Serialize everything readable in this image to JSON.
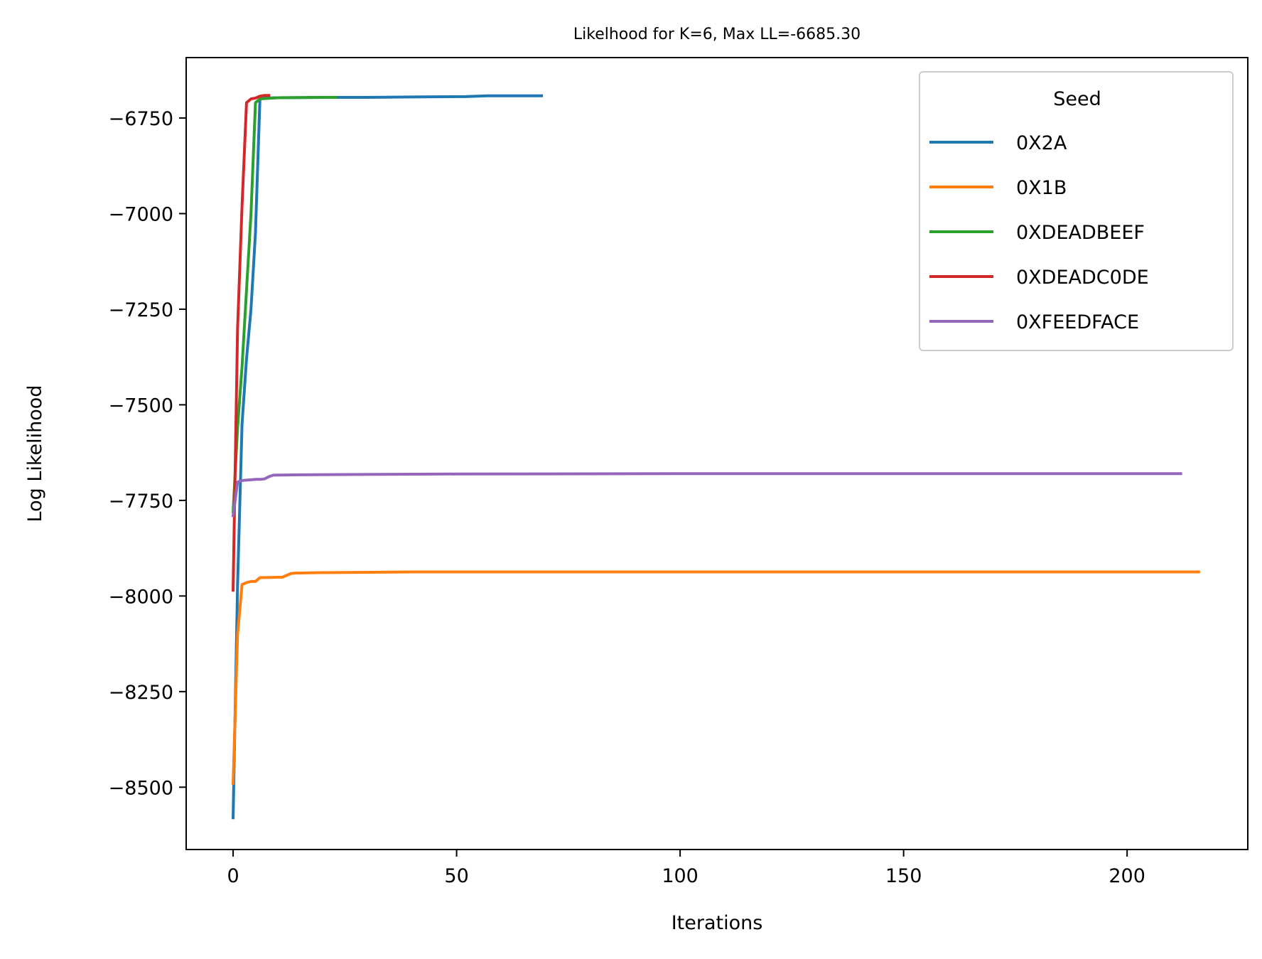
{
  "chart_data": {
    "type": "line",
    "title": "Likelhood for K=6,  Max LL=-6685.30",
    "xlabel": "Iterations",
    "ylabel": "Log Likelihood",
    "xlim": [
      -10.5,
      227
    ],
    "ylim": [
      -8663,
      -6592
    ],
    "xticks": [
      0,
      50,
      100,
      150,
      200
    ],
    "xtick_labels": [
      "0",
      "50",
      "100",
      "150",
      "200"
    ],
    "yticks": [
      -6750,
      -7000,
      -7250,
      -7500,
      -7750,
      -8000,
      -8250,
      -8500
    ],
    "ytick_labels": [
      "−6750",
      "−7000",
      "−7250",
      "−7500",
      "−7750",
      "−8000",
      "−8250",
      "−8500"
    ],
    "grid": false,
    "legend": {
      "title": "Seed",
      "location": "upper right"
    },
    "series": [
      {
        "name": "0X2A",
        "color": "#1f77b4",
        "points": [
          [
            0,
            -8580
          ],
          [
            1,
            -7970
          ],
          [
            2,
            -7550
          ],
          [
            3,
            -7380
          ],
          [
            4,
            -7250
          ],
          [
            5,
            -7050
          ],
          [
            6,
            -6700
          ],
          [
            7,
            -6698
          ],
          [
            10,
            -6697
          ],
          [
            20,
            -6696
          ],
          [
            30,
            -6696
          ],
          [
            40,
            -6695
          ],
          [
            52,
            -6694
          ],
          [
            57,
            -6692
          ],
          [
            69,
            -6692
          ]
        ]
      },
      {
        "name": "0X1B",
        "color": "#ff7f0e",
        "points": [
          [
            0,
            -8490
          ],
          [
            1,
            -8100
          ],
          [
            2,
            -7970
          ],
          [
            3,
            -7965
          ],
          [
            4,
            -7962
          ],
          [
            5,
            -7962
          ],
          [
            6,
            -7952
          ],
          [
            10,
            -7951
          ],
          [
            11,
            -7951
          ],
          [
            13,
            -7941
          ],
          [
            14,
            -7940
          ],
          [
            20,
            -7939
          ],
          [
            40,
            -7937
          ],
          [
            100,
            -7937
          ],
          [
            150,
            -7937
          ],
          [
            216,
            -7937
          ]
        ]
      },
      {
        "name": "0XDEADBEEF",
        "color": "#2ca02c",
        "points": [
          [
            0,
            -7780
          ],
          [
            1,
            -7560
          ],
          [
            2,
            -7400
          ],
          [
            3,
            -7200
          ],
          [
            4,
            -7000
          ],
          [
            5,
            -6710
          ],
          [
            6,
            -6700
          ],
          [
            10,
            -6697
          ],
          [
            20,
            -6696
          ],
          [
            23,
            -6696
          ]
        ]
      },
      {
        "name": "0XDEADC0DE",
        "color": "#d62728",
        "points": [
          [
            0,
            -7985
          ],
          [
            1,
            -7300
          ],
          [
            2,
            -6980
          ],
          [
            3,
            -6710
          ],
          [
            4,
            -6700
          ],
          [
            5,
            -6698
          ],
          [
            6,
            -6693
          ],
          [
            7,
            -6691
          ],
          [
            8,
            -6691
          ]
        ]
      },
      {
        "name": "0XFEEDFACE",
        "color": "#9467bd",
        "points": [
          [
            0,
            -7790
          ],
          [
            1,
            -7702
          ],
          [
            2,
            -7698
          ],
          [
            3,
            -7697
          ],
          [
            4,
            -7696
          ],
          [
            5,
            -7695
          ],
          [
            6,
            -7695
          ],
          [
            7,
            -7694
          ],
          [
            8,
            -7688
          ],
          [
            9,
            -7684
          ],
          [
            15,
            -7683
          ],
          [
            50,
            -7681
          ],
          [
            100,
            -7680
          ],
          [
            150,
            -7680
          ],
          [
            212,
            -7680
          ]
        ]
      }
    ]
  }
}
